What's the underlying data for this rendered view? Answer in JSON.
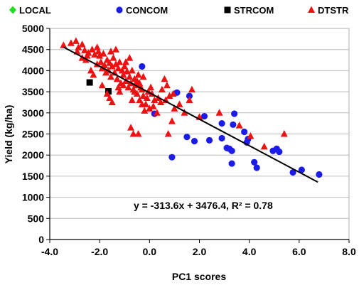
{
  "chart_data": {
    "type": "scatter",
    "xlabel": "PC1 scores",
    "ylabel": "Yield (kg/ha)",
    "xlim": [
      -4.0,
      8.0
    ],
    "ylim": [
      0,
      5000
    ],
    "x_ticks": [
      "-4.0",
      "-2.0",
      "0.0",
      "2.0",
      "4.0",
      "6.0",
      "8.0"
    ],
    "y_ticks": [
      "0",
      "500",
      "1000",
      "1500",
      "2000",
      "2500",
      "3000",
      "3500",
      "4000",
      "4500",
      "5000"
    ],
    "grid": "horizontal",
    "legend_position": "top",
    "equation": "y = -313.6x + 3476.4, R² = 0.78",
    "trendline": {
      "slope": -313.6,
      "intercept": 3476.4,
      "x_range": [
        -3.45,
        6.75
      ]
    },
    "series": [
      {
        "name": "LOCAL",
        "marker": "diamond",
        "color": "#22dd22",
        "points": []
      },
      {
        "name": "CONCOM",
        "marker": "circle",
        "color": "#1c1ce8",
        "points": [
          [
            -0.3,
            4100
          ],
          [
            0.2,
            2980
          ],
          [
            0.9,
            1950
          ],
          [
            1.1,
            3480
          ],
          [
            1.6,
            3400
          ],
          [
            1.5,
            2430
          ],
          [
            1.8,
            2330
          ],
          [
            2.2,
            2920
          ],
          [
            2.4,
            2350
          ],
          [
            2.9,
            2750
          ],
          [
            2.9,
            2400
          ],
          [
            3.1,
            2170
          ],
          [
            3.2,
            2150
          ],
          [
            3.3,
            1800
          ],
          [
            3.3,
            2100
          ],
          [
            3.35,
            2720
          ],
          [
            3.4,
            2980
          ],
          [
            3.8,
            2550
          ],
          [
            3.9,
            2300
          ],
          [
            3.95,
            2380
          ],
          [
            4.2,
            1830
          ],
          [
            4.3,
            1700
          ],
          [
            4.95,
            2100
          ],
          [
            5.1,
            2150
          ],
          [
            5.2,
            2080
          ],
          [
            5.75,
            1590
          ],
          [
            6.1,
            1650
          ],
          [
            6.8,
            1540
          ]
        ]
      },
      {
        "name": "STRCOM",
        "marker": "square",
        "color": "#000000",
        "points": [
          [
            -2.4,
            3720
          ],
          [
            -1.65,
            3510
          ]
        ]
      },
      {
        "name": "DTSTR",
        "marker": "triangle",
        "color": "#ee1111",
        "points": [
          [
            -3.45,
            4600
          ],
          [
            -3.15,
            4650
          ],
          [
            -2.95,
            4700
          ],
          [
            -2.85,
            4550
          ],
          [
            -2.7,
            4620
          ],
          [
            -2.6,
            4480
          ],
          [
            -2.5,
            4350
          ],
          [
            -2.45,
            4420
          ],
          [
            -2.55,
            4250
          ],
          [
            -2.3,
            4500
          ],
          [
            -2.2,
            4380
          ],
          [
            -2.1,
            4150
          ],
          [
            -2.0,
            4350
          ],
          [
            -1.95,
            4200
          ],
          [
            -1.9,
            4050
          ],
          [
            -1.85,
            4400
          ],
          [
            -1.8,
            4120
          ],
          [
            -1.75,
            3950
          ],
          [
            -1.7,
            4250
          ],
          [
            -1.65,
            4000
          ],
          [
            -1.6,
            4180
          ],
          [
            -1.55,
            3850
          ],
          [
            -1.5,
            4100
          ],
          [
            -1.45,
            4300
          ],
          [
            -1.4,
            3950
          ],
          [
            -1.35,
            4150
          ],
          [
            -1.3,
            3800
          ],
          [
            -1.25,
            4050
          ],
          [
            -1.2,
            4200
          ],
          [
            -1.15,
            3700
          ],
          [
            -1.1,
            4000
          ],
          [
            -1.05,
            3900
          ],
          [
            -1.0,
            4100
          ],
          [
            -0.95,
            3750
          ],
          [
            -0.9,
            3980
          ],
          [
            -0.85,
            3600
          ],
          [
            -0.8,
            3850
          ],
          [
            -0.75,
            3700
          ],
          [
            -0.7,
            4000
          ],
          [
            -0.65,
            3550
          ],
          [
            -0.6,
            3800
          ],
          [
            -0.55,
            3650
          ],
          [
            -0.5,
            3450
          ],
          [
            -0.45,
            3900
          ],
          [
            -0.4,
            3300
          ],
          [
            -0.35,
            3600
          ],
          [
            -0.3,
            3200
          ],
          [
            -0.25,
            3400
          ],
          [
            -0.2,
            3050
          ],
          [
            -0.1,
            3350
          ],
          [
            0.0,
            3100
          ],
          [
            0.1,
            3450
          ],
          [
            0.2,
            3300
          ],
          [
            0.3,
            3000
          ],
          [
            0.5,
            3550
          ],
          [
            0.6,
            3800
          ],
          [
            0.7,
            3650
          ],
          [
            0.8,
            3400
          ],
          [
            0.9,
            2800
          ],
          [
            1.0,
            3100
          ],
          [
            1.2,
            3200
          ],
          [
            1.4,
            3000
          ],
          [
            1.7,
            3550
          ],
          [
            2.0,
            2900
          ],
          [
            2.8,
            3000
          ],
          [
            3.6,
            2700
          ],
          [
            4.05,
            2450
          ],
          [
            4.6,
            2200
          ],
          [
            5.4,
            2500
          ],
          [
            -2.25,
            3900
          ],
          [
            -2.05,
            4450
          ],
          [
            -1.9,
            3650
          ],
          [
            -1.7,
            3450
          ],
          [
            -1.55,
            4450
          ],
          [
            -1.35,
            4500
          ],
          [
            -1.25,
            3600
          ],
          [
            -1.05,
            3650
          ],
          [
            -0.95,
            4200
          ],
          [
            -0.8,
            4300
          ],
          [
            -0.6,
            3500
          ],
          [
            -0.5,
            3750
          ],
          [
            -0.4,
            3700
          ],
          [
            -0.25,
            3850
          ],
          [
            -0.15,
            3200
          ],
          [
            0.05,
            3600
          ],
          [
            0.35,
            3350
          ],
          [
            0.15,
            3150
          ],
          [
            -0.05,
            3500
          ],
          [
            0.45,
            3250
          ],
          [
            0.65,
            3300
          ],
          [
            0.75,
            2500
          ],
          [
            -0.65,
            2500
          ],
          [
            -0.75,
            2650
          ],
          [
            -0.45,
            2500
          ],
          [
            -2.7,
            4300
          ],
          [
            -2.9,
            4450
          ],
          [
            -2.1,
            4550
          ],
          [
            -1.6,
            3350
          ],
          [
            -1.2,
            3500
          ],
          [
            -0.3,
            3550
          ],
          [
            1.6,
            3300
          ],
          [
            0.95,
            3450
          ],
          [
            -2.35,
            4000
          ],
          [
            -1.5,
            3250
          ],
          [
            -0.7,
            3300
          ]
        ]
      }
    ]
  }
}
